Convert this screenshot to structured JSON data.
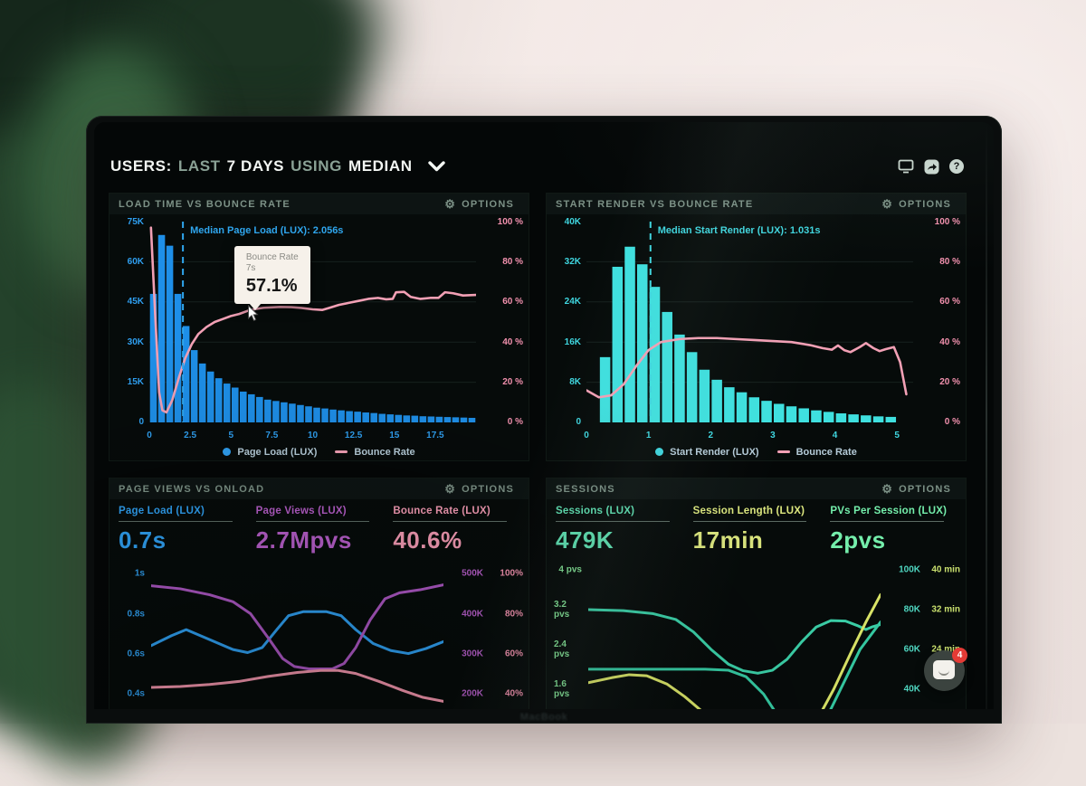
{
  "header": {
    "segments": [
      {
        "text": "USERS:"
      },
      {
        "text": "LAST"
      },
      {
        "text": "7 DAYS"
      },
      {
        "text": "USING"
      },
      {
        "text": "MEDIAN"
      }
    ],
    "icon_names": [
      "display-icon",
      "share-icon",
      "help-icon",
      "chevron-down-icon"
    ]
  },
  "icons": {
    "gear_glyph": "⚙",
    "help_glyph": "?"
  },
  "panels": {
    "load_time": {
      "title": "LOAD TIME VS BOUNCE RATE",
      "options_label": "OPTIONS",
      "y_left_color": "#2f9ff0",
      "y_right_color": "#f291ae",
      "y_left_ticks": [
        "75K",
        "60K",
        "45K",
        "30K",
        "15K",
        "0"
      ],
      "y_right_ticks": [
        "100 %",
        "80 %",
        "60 %",
        "40 %",
        "20 %",
        "0 %"
      ],
      "legend": [
        {
          "label": "Page Load (LUX)",
          "color": "#2f9ff0"
        },
        {
          "label": "Bounce Rate",
          "color": "#f2a0b5"
        }
      ],
      "tooltip": {
        "series": "Bounce Rate",
        "x": "7s",
        "value": "57.1%"
      }
    },
    "start_render": {
      "title": "START RENDER VS BOUNCE RATE",
      "options_label": "OPTIONS",
      "y_left_color": "#3fd6df",
      "y_right_color": "#f291ae",
      "y_left_ticks": [
        "40K",
        "32K",
        "24K",
        "16K",
        "8K",
        "0"
      ],
      "y_right_ticks": [
        "100 %",
        "80 %",
        "60 %",
        "40 %",
        "20 %",
        "0 %"
      ],
      "legend": [
        {
          "label": "Start Render (LUX)",
          "color": "#3fd6df"
        },
        {
          "label": "Bounce Rate",
          "color": "#f2a0b5"
        }
      ]
    },
    "page_views": {
      "title": "PAGE VIEWS VS ONLOAD",
      "options_label": "OPTIONS",
      "stats": [
        {
          "label": "Page Load (LUX)",
          "value": "0.7s",
          "color": "#2f9ff0"
        },
        {
          "label": "Page Views (LUX)",
          "value": "2.7Mpvs",
          "color": "#b65ec9"
        },
        {
          "label": "Bounce Rate (LUX)",
          "value": "40.6%",
          "color": "#f39ab3"
        }
      ],
      "y_left_color": "#2f9ff0",
      "y_left_ticks": [
        "1s",
        "0.8s",
        "0.6s",
        "0.4s"
      ],
      "y_right_rows": [
        [
          "500K",
          "100%"
        ],
        [
          "400K",
          "80%"
        ],
        [
          "300K",
          "60%"
        ],
        [
          "200K",
          "40%"
        ]
      ],
      "y_right_colors": [
        "#b65ec9",
        "#f291ae"
      ]
    },
    "sessions": {
      "title": "SESSIONS",
      "options_label": "OPTIONS",
      "stats": [
        {
          "label": "Sessions (LUX)",
          "value": "479K",
          "color": "#5fe0b2"
        },
        {
          "label": "Session Length (LUX)",
          "value": "17min",
          "color": "#dde87f"
        },
        {
          "label": "PVs Per Session (LUX)",
          "value": "2pvs",
          "color": "#74eeab"
        }
      ],
      "y_left_color": "#7fdd92",
      "y_left_ticks": [
        "4 pvs",
        "3.2 pvs",
        "2.4 pvs",
        "1.6 pvs"
      ],
      "y_right_rows": [
        [
          "100K",
          "40 min"
        ],
        [
          "80K",
          "32 min"
        ],
        [
          "60K",
          "24 min"
        ],
        [
          "40K",
          ""
        ]
      ],
      "y_right_colors": [
        "#4fd6c0",
        "#c9e06e"
      ]
    }
  },
  "chat_button": {
    "badge": "4"
  },
  "laptop": {
    "brand": "MacBook"
  },
  "chart_data": [
    {
      "type": "bar",
      "title": "LOAD TIME VS BOUNCE RATE",
      "x_range": [
        0,
        20
      ],
      "grid_rows": 5,
      "x_ticks": [
        {
          "v": 0,
          "t": "0"
        },
        {
          "v": 2.5,
          "t": "2.5"
        },
        {
          "v": 5,
          "t": "5"
        },
        {
          "v": 7.5,
          "t": "7.5"
        },
        {
          "v": 10,
          "t": "10"
        },
        {
          "v": 12.5,
          "t": "12.5"
        },
        {
          "v": 15,
          "t": "15"
        },
        {
          "v": 17.5,
          "t": "17.5"
        }
      ],
      "bars": {
        "name": "Page Load (LUX)",
        "color": "#1e8fe8",
        "start": 0,
        "step": 0.5,
        "unit": "K",
        "ymax": 75,
        "values": [
          48,
          70,
          66,
          48,
          36,
          27,
          22,
          19,
          16.5,
          14.5,
          13,
          11.5,
          10.5,
          9.5,
          8.5,
          8,
          7.5,
          7,
          6.5,
          6,
          5.5,
          5.2,
          4.8,
          4.5,
          4.2,
          4,
          3.7,
          3.5,
          3.2,
          3,
          2.8,
          2.6,
          2.5,
          2.3,
          2.2,
          2.1,
          2,
          1.9,
          1.8,
          1.7
        ]
      },
      "line": {
        "name": "Bounce Rate",
        "color": "#f2a0b5",
        "unit": "%",
        "yrange": [
          0,
          100
        ],
        "points": [
          [
            0.1,
            97
          ],
          [
            0.35,
            55
          ],
          [
            0.6,
            15
          ],
          [
            0.8,
            6
          ],
          [
            1.05,
            5
          ],
          [
            1.4,
            11
          ],
          [
            1.8,
            22
          ],
          [
            2.2,
            32
          ],
          [
            2.6,
            39
          ],
          [
            3,
            44
          ],
          [
            3.5,
            47.5
          ],
          [
            4,
            50
          ],
          [
            4.5,
            51.5
          ],
          [
            5,
            53
          ],
          [
            5.5,
            54
          ],
          [
            6,
            55.5
          ],
          [
            6.5,
            56.5
          ],
          [
            7,
            57.1
          ],
          [
            7.5,
            57.3
          ],
          [
            8,
            57.5
          ],
          [
            8.7,
            57.4
          ],
          [
            9.3,
            57
          ],
          [
            10,
            56.3
          ],
          [
            10.6,
            56
          ],
          [
            11,
            57
          ],
          [
            11.6,
            58.5
          ],
          [
            12.2,
            59.5
          ],
          [
            12.8,
            60.5
          ],
          [
            13.4,
            61.5
          ],
          [
            14,
            62
          ],
          [
            14.5,
            61.3
          ],
          [
            14.9,
            61.5
          ],
          [
            15.1,
            64.8
          ],
          [
            15.6,
            65
          ],
          [
            16,
            62.5
          ],
          [
            16.6,
            61.5
          ],
          [
            17.2,
            62
          ],
          [
            17.7,
            62
          ],
          [
            18.1,
            64.8
          ],
          [
            18.6,
            64.3
          ],
          [
            19.2,
            63.2
          ],
          [
            20,
            63.5
          ]
        ]
      },
      "median": {
        "x": 2.056,
        "label": "Median Page Load (LUX): 2.056s",
        "color": "#2fa6ee"
      }
    },
    {
      "type": "bar",
      "title": "START RENDER VS BOUNCE RATE",
      "x_range": [
        0,
        5.26
      ],
      "grid_rows": 5,
      "x_ticks": [
        {
          "v": 0,
          "t": "0"
        },
        {
          "v": 1,
          "t": "1"
        },
        {
          "v": 2,
          "t": "2"
        },
        {
          "v": 3,
          "t": "3"
        },
        {
          "v": 4,
          "t": "4"
        },
        {
          "v": 5,
          "t": "5"
        }
      ],
      "bars": {
        "name": "Start Render (LUX)",
        "color": "#3fe0df",
        "start": 0.2,
        "step": 0.2,
        "unit": "K",
        "ymax": 40,
        "values": [
          13,
          31,
          35,
          31.5,
          27,
          22,
          17.5,
          14,
          10.5,
          8.5,
          7,
          6,
          5,
          4.3,
          3.7,
          3.2,
          2.8,
          2.4,
          2.1,
          1.8,
          1.6,
          1.4,
          1.2,
          1.1
        ]
      },
      "line": {
        "name": "Bounce Rate",
        "color": "#f2a0b5",
        "unit": "%",
        "yrange": [
          0,
          100
        ],
        "points": [
          [
            0,
            16
          ],
          [
            0.2,
            12.5
          ],
          [
            0.4,
            13.5
          ],
          [
            0.6,
            19
          ],
          [
            0.8,
            28
          ],
          [
            1,
            36
          ],
          [
            1.2,
            40
          ],
          [
            1.5,
            41.5
          ],
          [
            1.8,
            42
          ],
          [
            2.1,
            42
          ],
          [
            2.4,
            41.5
          ],
          [
            2.7,
            41
          ],
          [
            3,
            40.5
          ],
          [
            3.3,
            40
          ],
          [
            3.6,
            38.5
          ],
          [
            3.8,
            37
          ],
          [
            3.95,
            36.2
          ],
          [
            4.05,
            38.3
          ],
          [
            4.15,
            36
          ],
          [
            4.25,
            35
          ],
          [
            4.4,
            37.5
          ],
          [
            4.5,
            39.5
          ],
          [
            4.62,
            37
          ],
          [
            4.72,
            35.5
          ],
          [
            4.82,
            36.5
          ],
          [
            4.95,
            37.5
          ],
          [
            5.05,
            30
          ],
          [
            5.15,
            14
          ]
        ]
      },
      "median": {
        "x": 1.031,
        "label": "Median Start Render (LUX): 1.031s",
        "color": "#3fd6df"
      }
    },
    {
      "type": "line",
      "title": "PAGE VIEWS VS ONLOAD",
      "x_range": [
        0,
        1
      ],
      "yrange": [
        -0.01,
        1.07
      ],
      "tick_vals": [
        1,
        0.8,
        0.6,
        0.4
      ],
      "series": [
        {
          "name": "Page Load (LUX)",
          "color": "#2f9ff0",
          "unit": "s",
          "width": 3,
          "points": [
            [
              0,
              0.64
            ],
            [
              0.07,
              0.69
            ],
            [
              0.12,
              0.72
            ],
            [
              0.2,
              0.67
            ],
            [
              0.28,
              0.62
            ],
            [
              0.33,
              0.605
            ],
            [
              0.38,
              0.63
            ],
            [
              0.43,
              0.72
            ],
            [
              0.47,
              0.79
            ],
            [
              0.52,
              0.81
            ],
            [
              0.6,
              0.81
            ],
            [
              0.65,
              0.79
            ],
            [
              0.7,
              0.72
            ],
            [
              0.76,
              0.65
            ],
            [
              0.82,
              0.615
            ],
            [
              0.88,
              0.6
            ],
            [
              0.94,
              0.625
            ],
            [
              1,
              0.66
            ]
          ]
        },
        {
          "name": "Page Views (LUX)",
          "color": "#ab57c2",
          "unit": "s-equivalent",
          "width": 3,
          "points": [
            [
              0,
              0.94
            ],
            [
              0.1,
              0.925
            ],
            [
              0.2,
              0.895
            ],
            [
              0.28,
              0.86
            ],
            [
              0.34,
              0.8
            ],
            [
              0.4,
              0.68
            ],
            [
              0.45,
              0.575
            ],
            [
              0.49,
              0.535
            ],
            [
              0.54,
              0.523
            ],
            [
              0.62,
              0.523
            ],
            [
              0.66,
              0.55
            ],
            [
              0.7,
              0.63
            ],
            [
              0.75,
              0.77
            ],
            [
              0.8,
              0.875
            ],
            [
              0.85,
              0.905
            ],
            [
              0.92,
              0.92
            ],
            [
              1,
              0.945
            ]
          ]
        },
        {
          "name": "Bounce Rate (LUX)",
          "color": "#f295ac",
          "unit": "s-equivalent",
          "width": 3,
          "points": [
            [
              0,
              0.43
            ],
            [
              0.1,
              0.435
            ],
            [
              0.2,
              0.445
            ],
            [
              0.3,
              0.46
            ],
            [
              0.4,
              0.485
            ],
            [
              0.5,
              0.505
            ],
            [
              0.58,
              0.515
            ],
            [
              0.64,
              0.515
            ],
            [
              0.7,
              0.5
            ],
            [
              0.78,
              0.46
            ],
            [
              0.86,
              0.415
            ],
            [
              0.93,
              0.38
            ],
            [
              1,
              0.36
            ]
          ]
        }
      ]
    },
    {
      "type": "line",
      "title": "SESSIONS",
      "x_range": [
        0,
        1
      ],
      "yrange": [
        -0.13,
        4.2
      ],
      "tick_vals": [
        4,
        3.2,
        2.4,
        1.6
      ],
      "series": [
        {
          "name": "Sessions (LUX)",
          "color": "#3bd0a8",
          "unit": "pvs-equivalent",
          "width": 3,
          "points": [
            [
              0,
              3.2
            ],
            [
              0.12,
              3.18
            ],
            [
              0.22,
              3.12
            ],
            [
              0.3,
              3.0
            ],
            [
              0.36,
              2.75
            ],
            [
              0.42,
              2.4
            ],
            [
              0.48,
              2.1
            ],
            [
              0.53,
              1.97
            ],
            [
              0.58,
              1.92
            ],
            [
              0.63,
              1.98
            ],
            [
              0.68,
              2.2
            ],
            [
              0.73,
              2.55
            ],
            [
              0.78,
              2.85
            ],
            [
              0.83,
              2.98
            ],
            [
              0.88,
              2.97
            ],
            [
              0.92,
              2.88
            ],
            [
              0.95,
              2.8
            ],
            [
              0.97,
              2.85
            ],
            [
              1,
              2.9
            ]
          ]
        },
        {
          "name": "PVs Per Session (LUX)",
          "color": "#35c9a2",
          "unit": "pvs",
          "width": 3,
          "points": [
            [
              0,
              2.0
            ],
            [
              0.4,
              2.0
            ],
            [
              0.48,
              1.98
            ],
            [
              0.54,
              1.85
            ],
            [
              0.6,
              1.5
            ],
            [
              0.65,
              1.05
            ],
            [
              0.7,
              0.68
            ],
            [
              0.74,
              0.55
            ],
            [
              0.78,
              0.75
            ],
            [
              0.83,
              1.2
            ],
            [
              0.88,
              1.8
            ],
            [
              0.93,
              2.4
            ],
            [
              1,
              2.95
            ]
          ]
        },
        {
          "name": "Session Length (LUX)",
          "color": "#d9e467",
          "unit": "min-equivalent",
          "width": 3,
          "points": [
            [
              0,
              1.73
            ],
            [
              0.08,
              1.83
            ],
            [
              0.14,
              1.89
            ],
            [
              0.2,
              1.87
            ],
            [
              0.27,
              1.7
            ],
            [
              0.33,
              1.45
            ],
            [
              0.4,
              1.1
            ],
            [
              0.47,
              0.7
            ],
            [
              0.54,
              0.4
            ],
            [
              0.6,
              0.28
            ],
            [
              0.66,
              0.35
            ],
            [
              0.72,
              0.55
            ],
            [
              0.78,
              0.95
            ],
            [
              0.84,
              1.6
            ],
            [
              0.9,
              2.35
            ],
            [
              0.95,
              2.95
            ],
            [
              1,
              3.5
            ]
          ]
        }
      ]
    }
  ]
}
